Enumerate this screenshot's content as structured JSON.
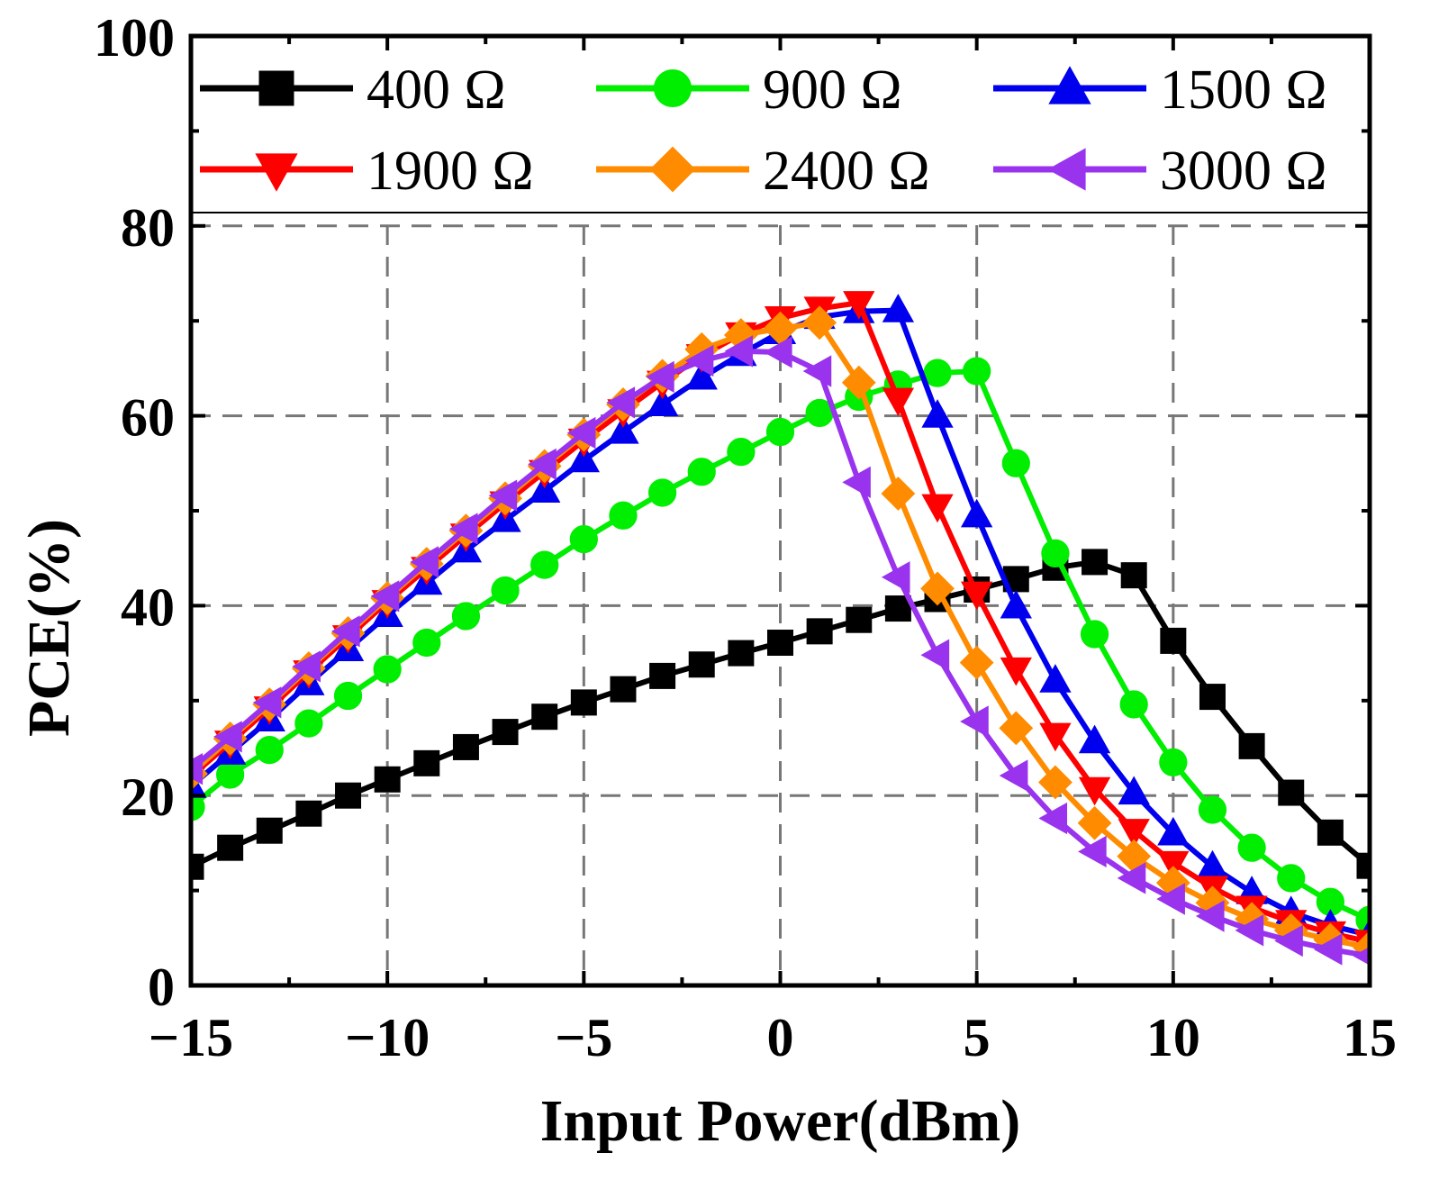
{
  "chart_data": {
    "type": "line",
    "title": "",
    "xlabel": "Input Power(dBm)",
    "ylabel": "PCE(%)",
    "xlim": [
      -15,
      15
    ],
    "ylim": [
      0,
      100
    ],
    "xticks": [
      -15,
      -10,
      -5,
      0,
      5,
      10,
      15
    ],
    "xtick_labels": [
      "−15",
      "−10",
      "−5",
      "0",
      "5",
      "10",
      "15"
    ],
    "yticks": [
      0,
      20,
      40,
      60,
      80,
      100
    ],
    "ytick_labels": [
      "0",
      "20",
      "40",
      "60",
      "80",
      "100"
    ],
    "grid": true,
    "legend_position": "top",
    "x": [
      -15,
      -14,
      -13,
      -12,
      -11,
      -10,
      -9,
      -8,
      -7,
      -6,
      -5,
      -4,
      -3,
      -2,
      -1,
      0,
      1,
      2,
      3,
      4,
      5,
      6,
      7,
      8,
      9,
      10,
      11,
      12,
      13,
      14,
      15
    ],
    "series": [
      {
        "name": "400 Ω",
        "color": "#000000",
        "marker": "square",
        "values": [
          12.5,
          14.5,
          16.3,
          18.1,
          20.0,
          21.7,
          23.4,
          25.1,
          26.7,
          28.3,
          29.8,
          31.2,
          32.6,
          33.8,
          35.0,
          36.1,
          37.3,
          38.5,
          39.7,
          40.7,
          41.7,
          42.8,
          44.0,
          44.6,
          43.2,
          36.3,
          30.4,
          25.2,
          20.3,
          16.1,
          12.6
        ]
      },
      {
        "name": "900 Ω",
        "color": "#00ee00",
        "marker": "circle",
        "values": [
          18.8,
          22.2,
          24.8,
          27.6,
          30.5,
          33.3,
          36.1,
          38.9,
          41.6,
          44.3,
          47.0,
          49.5,
          51.9,
          54.1,
          56.2,
          58.3,
          60.3,
          62.0,
          63.3,
          64.5,
          64.7,
          55.0,
          45.5,
          37.0,
          29.6,
          23.5,
          18.5,
          14.5,
          11.3,
          8.8,
          6.9
        ]
      },
      {
        "name": "1500 Ω",
        "color": "#0000ee",
        "marker": "triangle-up",
        "values": [
          21.0,
          24.5,
          28.0,
          31.8,
          35.4,
          39.0,
          42.4,
          45.8,
          49.0,
          52.1,
          55.3,
          58.3,
          61.2,
          64.0,
          66.5,
          68.8,
          70.4,
          71.0,
          71.1,
          60.0,
          49.5,
          39.9,
          32.1,
          25.7,
          20.3,
          16.0,
          12.5,
          9.8,
          7.7,
          6.3,
          5.3
        ]
      },
      {
        "name": "1900 Ω",
        "color": "#ff0000",
        "marker": "triangle-down",
        "values": [
          22.0,
          25.6,
          29.2,
          33.0,
          36.7,
          40.4,
          43.9,
          47.4,
          50.8,
          54.1,
          57.4,
          60.5,
          63.5,
          66.3,
          68.6,
          70.3,
          71.3,
          71.9,
          61.7,
          50.5,
          41.3,
          33.3,
          26.4,
          20.7,
          16.3,
          12.9,
          10.3,
          8.2,
          6.7,
          5.5,
          4.6
        ]
      },
      {
        "name": "2400 Ω",
        "color": "#ff8c00",
        "marker": "diamond",
        "values": [
          22.3,
          26.0,
          29.6,
          33.4,
          37.1,
          40.8,
          44.4,
          47.9,
          51.3,
          54.7,
          58.0,
          61.2,
          64.2,
          67.0,
          68.5,
          69.2,
          69.8,
          63.5,
          51.8,
          41.8,
          34.0,
          27.1,
          21.4,
          17.1,
          13.6,
          10.8,
          8.7,
          7.0,
          5.8,
          4.8,
          4.0
        ]
      },
      {
        "name": "3000 Ω",
        "color": "#9933ee",
        "marker": "triangle-left",
        "values": [
          22.8,
          26.2,
          29.8,
          33.6,
          37.3,
          41.0,
          44.6,
          48.1,
          51.6,
          54.9,
          58.2,
          61.4,
          64.1,
          65.8,
          66.8,
          66.7,
          64.7,
          53.0,
          43.0,
          34.8,
          27.8,
          22.1,
          17.6,
          14.1,
          11.3,
          9.1,
          7.3,
          5.8,
          4.7,
          3.8,
          3.1
        ]
      }
    ]
  }
}
